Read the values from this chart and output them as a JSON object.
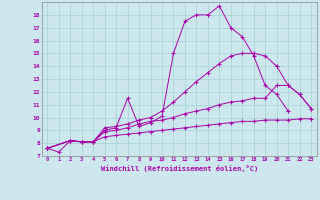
{
  "xlabel": "Windchill (Refroidissement éolien,°C)",
  "background_color": "#cce8ee",
  "line_color": "#aa00aa",
  "marker": "+",
  "xlim": [
    -0.5,
    23.5
  ],
  "ylim": [
    7,
    19
  ],
  "xticks": [
    0,
    1,
    2,
    3,
    4,
    5,
    6,
    7,
    8,
    9,
    10,
    11,
    12,
    13,
    14,
    15,
    16,
    17,
    18,
    19,
    20,
    21,
    22,
    23
  ],
  "yticks": [
    7,
    8,
    9,
    10,
    11,
    12,
    13,
    14,
    15,
    16,
    17,
    18
  ],
  "series1_x": [
    0,
    1,
    2,
    3,
    4,
    5,
    6,
    7,
    8,
    9,
    10,
    11,
    12,
    13,
    14,
    15,
    16,
    17,
    18,
    19,
    20,
    21
  ],
  "series1_y": [
    7.6,
    7.3,
    8.2,
    8.1,
    8.1,
    9.0,
    9.2,
    11.5,
    9.3,
    9.6,
    10.1,
    15.0,
    17.5,
    18.0,
    18.0,
    18.7,
    17.0,
    16.3,
    14.8,
    12.5,
    11.8,
    10.5
  ],
  "series2_x": [
    0,
    2,
    3,
    4,
    5,
    6,
    7,
    8,
    9,
    10,
    11,
    12,
    13,
    14,
    15,
    16,
    17,
    18,
    19,
    20,
    21,
    22,
    23
  ],
  "series2_y": [
    7.6,
    8.2,
    8.1,
    8.1,
    9.2,
    9.3,
    9.5,
    9.8,
    10.0,
    10.5,
    11.2,
    12.0,
    12.8,
    13.5,
    14.2,
    14.8,
    15.0,
    15.0,
    14.8,
    14.0,
    12.5,
    11.8,
    10.7
  ],
  "series3_x": [
    0,
    2,
    3,
    4,
    5,
    6,
    7,
    8,
    9,
    10,
    11,
    12,
    13,
    14,
    15,
    16,
    17,
    18,
    19,
    20,
    21,
    22,
    23
  ],
  "series3_y": [
    7.6,
    8.2,
    8.1,
    8.1,
    8.9,
    9.0,
    9.2,
    9.5,
    9.7,
    9.8,
    10.0,
    10.3,
    10.5,
    10.7,
    11.0,
    11.2,
    11.3,
    11.5,
    11.5,
    12.5,
    12.5,
    11.8,
    10.7
  ],
  "series4_x": [
    0,
    2,
    3,
    4,
    5,
    6,
    7,
    8,
    9,
    10,
    11,
    12,
    13,
    14,
    15,
    16,
    17,
    18,
    19,
    20,
    21,
    22,
    23
  ],
  "series4_y": [
    7.6,
    8.2,
    8.1,
    8.1,
    8.5,
    8.6,
    8.7,
    8.8,
    8.9,
    9.0,
    9.1,
    9.2,
    9.3,
    9.4,
    9.5,
    9.6,
    9.7,
    9.7,
    9.8,
    9.8,
    9.8,
    9.9,
    9.9
  ]
}
